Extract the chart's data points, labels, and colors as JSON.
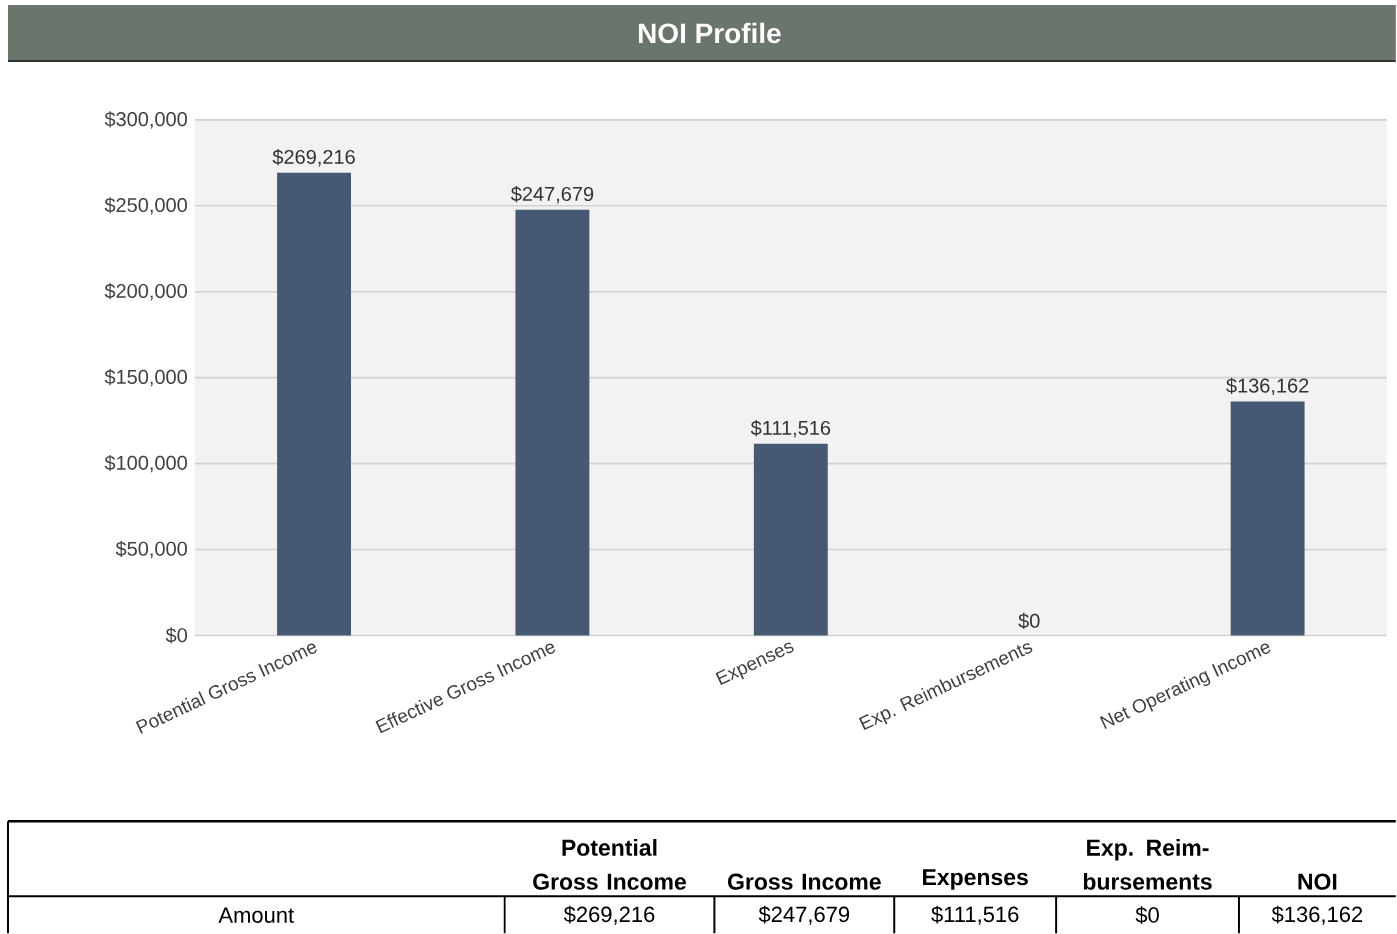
{
  "chart_data": {
    "type": "bar",
    "title": "NOI Profile",
    "categories": [
      "Potential Gross Income",
      "Effective Gross Income",
      "Expenses",
      "Exp. Reimbursements",
      "Net Operating Income"
    ],
    "values": [
      269216,
      247679,
      111516,
      0,
      136162
    ],
    "value_labels": [
      "$269,216",
      "$247,679",
      "$111,516",
      "$0",
      "$136,162"
    ],
    "color": "#475872",
    "ylim": [
      0,
      300000
    ],
    "yticks": [
      {
        "value": 0,
        "label": "$0"
      },
      {
        "value": 50000,
        "label": "$50,000"
      },
      {
        "value": 100000,
        "label": "$100,000"
      },
      {
        "value": 150000,
        "label": "$150,000"
      },
      {
        "value": 200000,
        "label": "$200,000"
      },
      {
        "value": 250000,
        "label": "$250,000"
      },
      {
        "value": 300000,
        "label": "$300,000"
      }
    ],
    "grid": "y",
    "annotations": [
      "Amount",
      "Potential Gross Income",
      "Gross Income",
      "Expenses",
      "Exp. Reim-bursements",
      "NOI"
    ]
  }
}
